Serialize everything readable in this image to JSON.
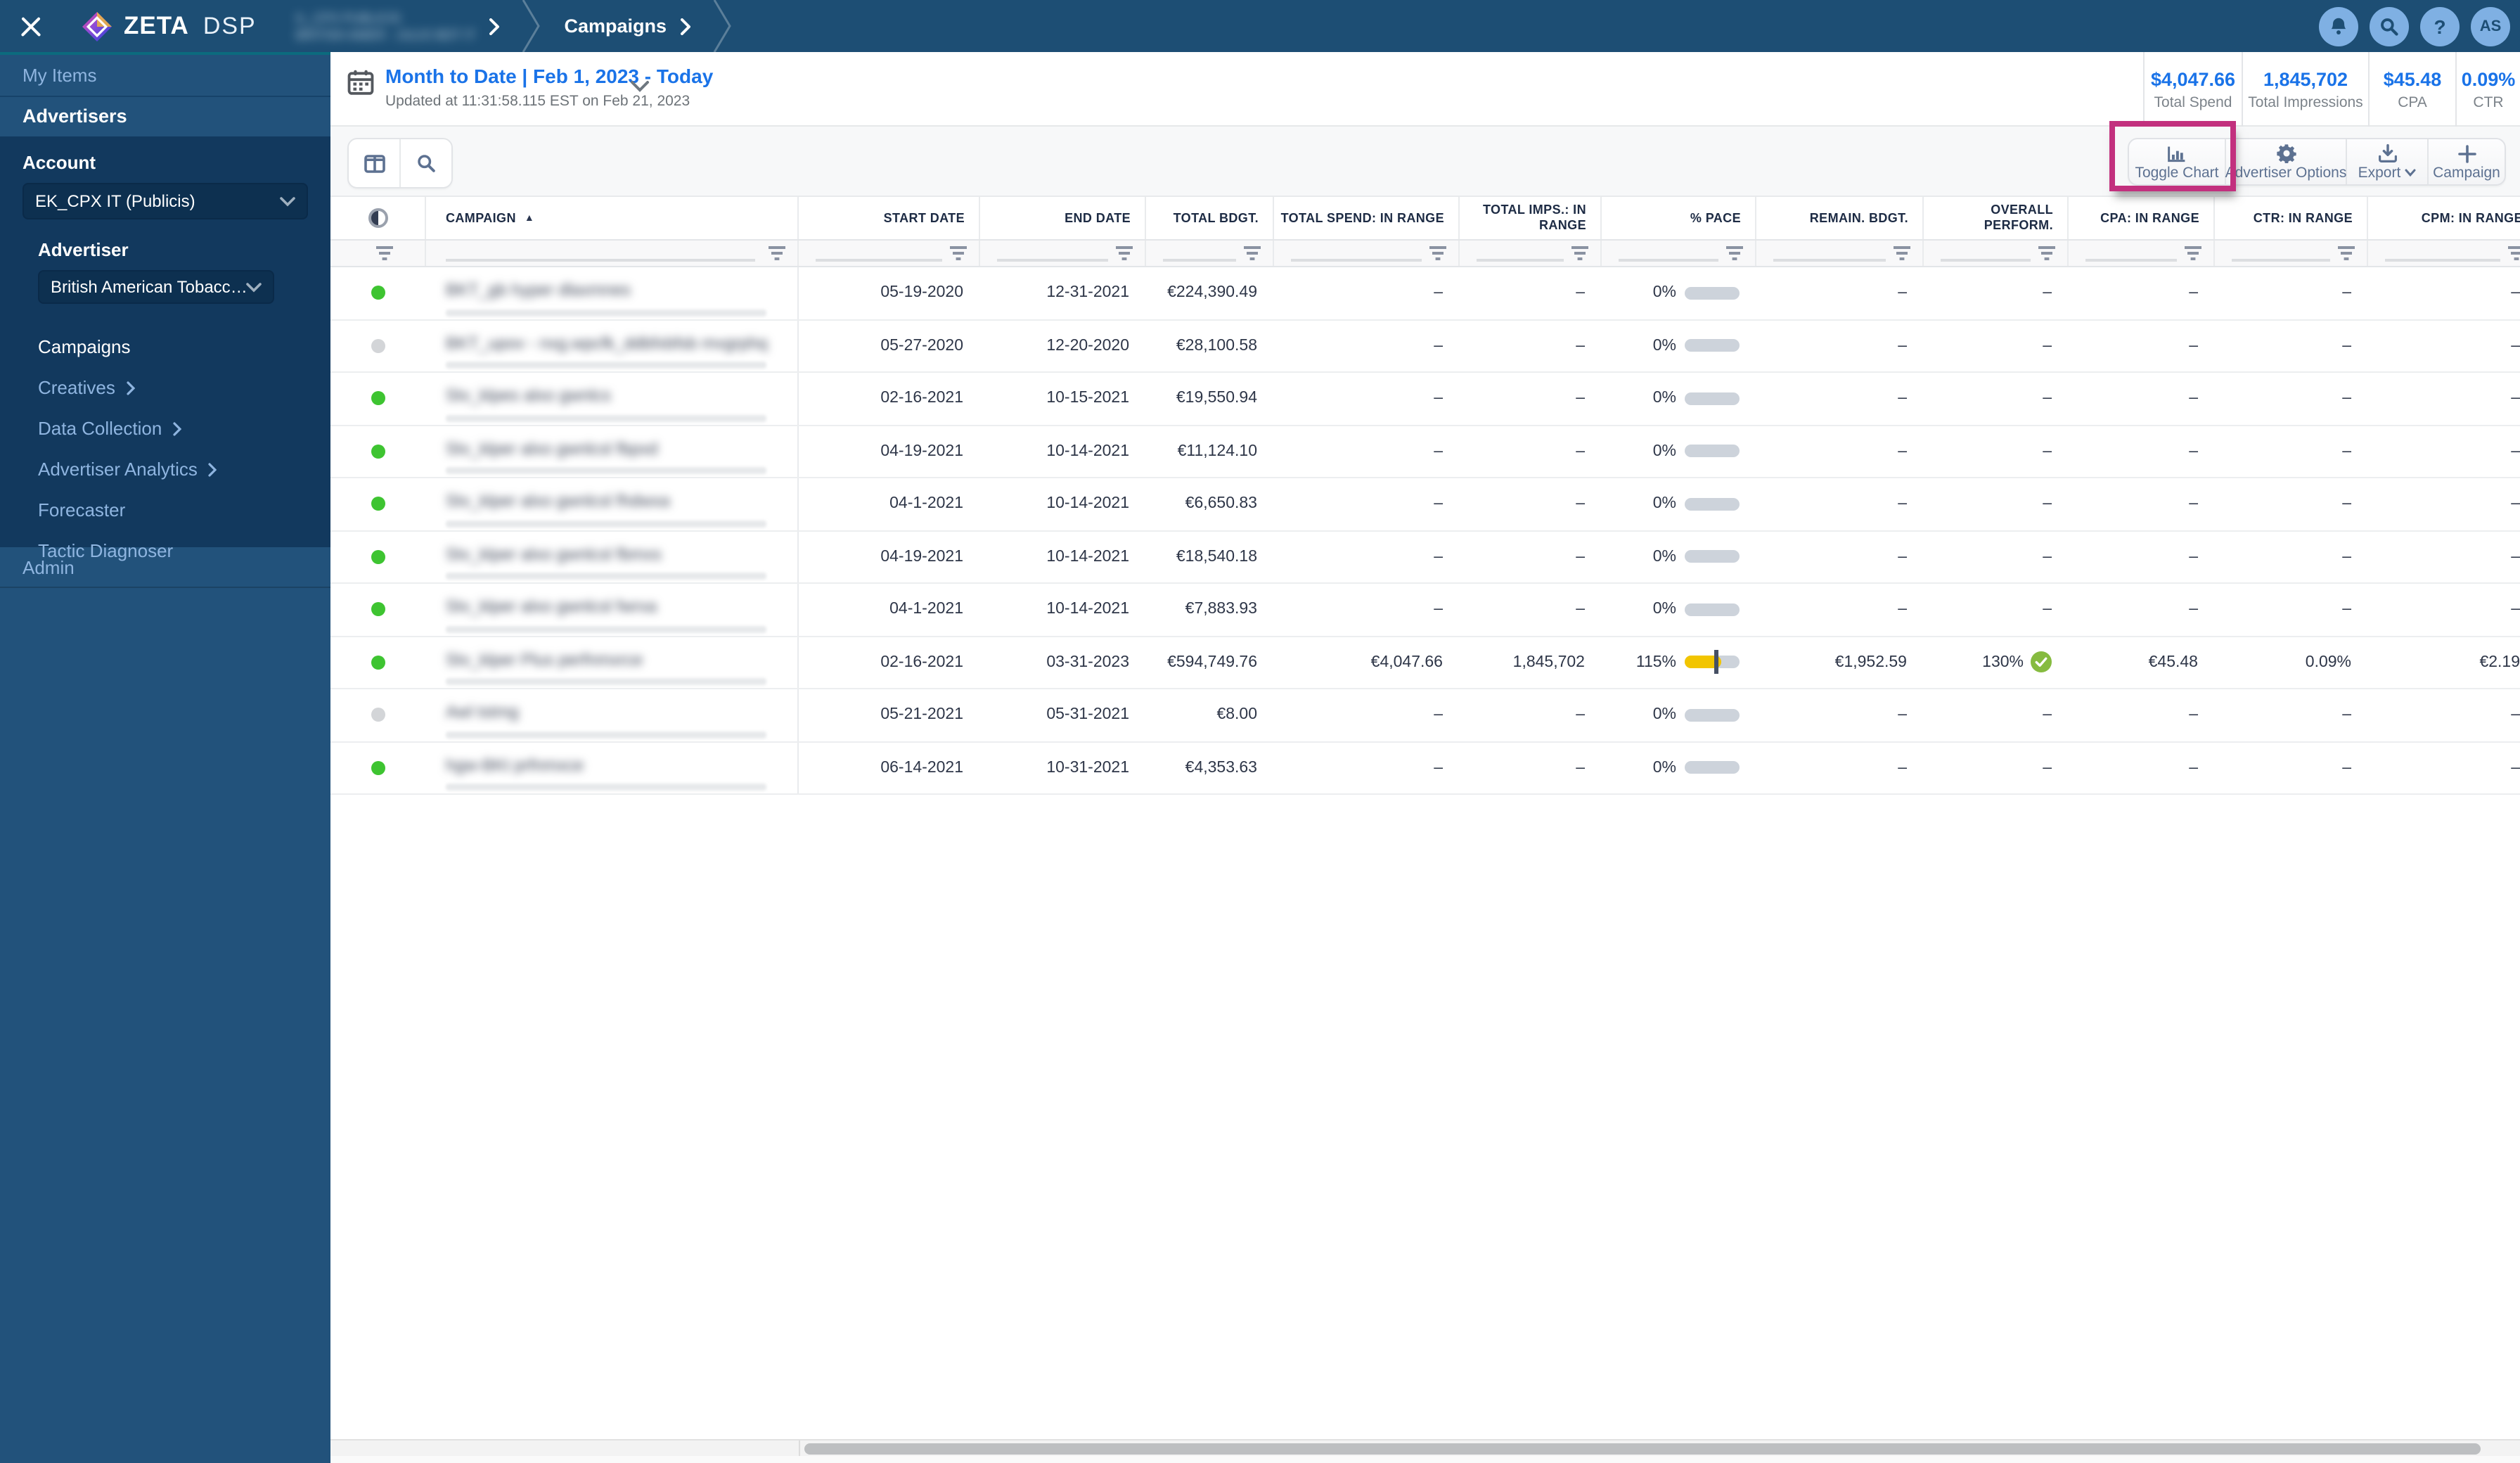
{
  "brand": {
    "name": "ZETA",
    "suffix": "DSP"
  },
  "breadcrumb": {
    "redacted_line1": "IL_CPX PUBLICIS",
    "redacted_line2": "BRITISH AMER - JULIO BDT IT",
    "current": "Campaigns"
  },
  "header_actions": {
    "help_glyph": "?",
    "avatar_initials": "AS"
  },
  "sidebar": {
    "my_items": "My Items",
    "advertisers": "Advertisers",
    "account_label": "Account",
    "account_value": "EK_CPX IT (Publicis)",
    "advertiser_label": "Advertiser",
    "advertiser_value": "British American Tobacco B...",
    "items": [
      {
        "label": "Campaigns"
      },
      {
        "label": "Creatives"
      },
      {
        "label": "Data Collection"
      },
      {
        "label": "Advertiser Analytics"
      },
      {
        "label": "Forecaster"
      },
      {
        "label": "Tactic Diagnoser"
      }
    ],
    "admin": "Admin"
  },
  "datebar": {
    "title": "Month to Date | Feb 1, 2023 - Today",
    "updated": "Updated at 11:31:58.115 EST on Feb 21, 2023"
  },
  "stats": [
    {
      "value": "$4,047.66",
      "label": "Total Spend"
    },
    {
      "value": "1,845,702",
      "label": "Total Impressions"
    },
    {
      "value": "$45.48",
      "label": "CPA"
    },
    {
      "value": "0.09%",
      "label": "CTR"
    }
  ],
  "toolbar": {
    "toggle_chart": "Toggle Chart",
    "advertiser_options": "Advertiser Options",
    "export": "Export",
    "campaign": "Campaign"
  },
  "annotation_color": "#c2307e",
  "table": {
    "columns": [
      "",
      "CAMPAIGN",
      "START DATE",
      "END DATE",
      "TOTAL BDGT.",
      "TOTAL SPEND: IN RANGE",
      "TOTAL IMPS.: IN\nRANGE",
      "% PACE",
      "REMAIN. BDGT.",
      "OVERALL\nPERFORM.",
      "CPA: IN RANGE",
      "CTR: IN RANGE",
      "CPM: IN RANGE"
    ],
    "rows": [
      {
        "status": "active",
        "name_redacted": "BKT_gb hyper dlaxmnes",
        "start": "05-19-2020",
        "end": "12-31-2021",
        "budget": "€224,390.49",
        "spend": "–",
        "imps": "–",
        "pace": "0%",
        "pace_fill": 0,
        "pace_marker": null,
        "remain": "–",
        "perform": "–",
        "perform_ok": false,
        "cpa": "–",
        "ctr": "–",
        "cpm": "–"
      },
      {
        "status": "inactive",
        "name_redacted": "BKT_upov - nxg.wpcfk_ddbfxbfsb mvgrphq",
        "start": "05-27-2020",
        "end": "12-20-2020",
        "budget": "€28,100.58",
        "spend": "–",
        "imps": "–",
        "pace": "0%",
        "pace_fill": 0,
        "pace_marker": null,
        "remain": "–",
        "perform": "–",
        "perform_ok": false,
        "cpa": "–",
        "ctr": "–",
        "cpm": "–"
      },
      {
        "status": "active",
        "name_redacted": "Stv_klpes alxo gwnlcs",
        "start": "02-16-2021",
        "end": "10-15-2021",
        "budget": "€19,550.94",
        "spend": "–",
        "imps": "–",
        "pace": "0%",
        "pace_fill": 0,
        "pace_marker": null,
        "remain": "–",
        "perform": "–",
        "perform_ok": false,
        "cpa": "–",
        "ctr": "–",
        "cpm": "–"
      },
      {
        "status": "active",
        "name_redacted": "Stv_klper alxo gwnlcsl fbpxd",
        "start": "04-19-2021",
        "end": "10-14-2021",
        "budget": "€11,124.10",
        "spend": "–",
        "imps": "–",
        "pace": "0%",
        "pace_fill": 0,
        "pace_marker": null,
        "remain": "–",
        "perform": "–",
        "perform_ok": false,
        "cpa": "–",
        "ctr": "–",
        "cpm": "–"
      },
      {
        "status": "active",
        "name_redacted": "Stv_klper alxo gwnlcsl fhdwxa",
        "start": "04-1-2021",
        "end": "10-14-2021",
        "budget": "€6,650.83",
        "spend": "–",
        "imps": "–",
        "pace": "0%",
        "pace_fill": 0,
        "pace_marker": null,
        "remain": "–",
        "perform": "–",
        "perform_ok": false,
        "cpa": "–",
        "ctr": "–",
        "cpm": "–"
      },
      {
        "status": "active",
        "name_redacted": "Stv_klper alxo gwnlcsl fbmxs",
        "start": "04-19-2021",
        "end": "10-14-2021",
        "budget": "€18,540.18",
        "spend": "–",
        "imps": "–",
        "pace": "0%",
        "pace_fill": 0,
        "pace_marker": null,
        "remain": "–",
        "perform": "–",
        "perform_ok": false,
        "cpa": "–",
        "ctr": "–",
        "cpm": "–"
      },
      {
        "status": "active",
        "name_redacted": "Stv_klper alxo gwnlcsl fwrxa",
        "start": "04-1-2021",
        "end": "10-14-2021",
        "budget": "€7,883.93",
        "spend": "–",
        "imps": "–",
        "pace": "0%",
        "pace_fill": 0,
        "pace_marker": null,
        "remain": "–",
        "perform": "–",
        "perform_ok": false,
        "cpa": "–",
        "ctr": "–",
        "cpm": "–"
      },
      {
        "status": "active",
        "name_redacted": "Stv_klper Plus perfnmxrce",
        "start": "02-16-2021",
        "end": "03-31-2023",
        "budget": "€594,749.76",
        "spend": "€4,047.66",
        "imps": "1,845,702",
        "pace": "115%",
        "pace_fill": 67,
        "pace_marker": 55,
        "remain": "€1,952.59",
        "perform": "130%",
        "perform_ok": true,
        "cpa": "€45.48",
        "ctr": "0.09%",
        "cpm": "€2.19"
      },
      {
        "status": "inactive",
        "name_redacted": "Awl tstmg",
        "start": "05-21-2021",
        "end": "05-31-2021",
        "budget": "€8.00",
        "spend": "–",
        "imps": "–",
        "pace": "0%",
        "pace_fill": 0,
        "pace_marker": null,
        "remain": "–",
        "perform": "–",
        "perform_ok": false,
        "cpa": "–",
        "ctr": "–",
        "cpm": "–"
      },
      {
        "status": "active",
        "name_redacted": "hgw-BKt prfnmxce",
        "start": "06-14-2021",
        "end": "10-31-2021",
        "budget": "€4,353.63",
        "spend": "–",
        "imps": "–",
        "pace": "0%",
        "pace_fill": 0,
        "pace_marker": null,
        "remain": "–",
        "perform": "–",
        "perform_ok": false,
        "cpa": "–",
        "ctr": "–",
        "cpm": "–"
      }
    ]
  }
}
